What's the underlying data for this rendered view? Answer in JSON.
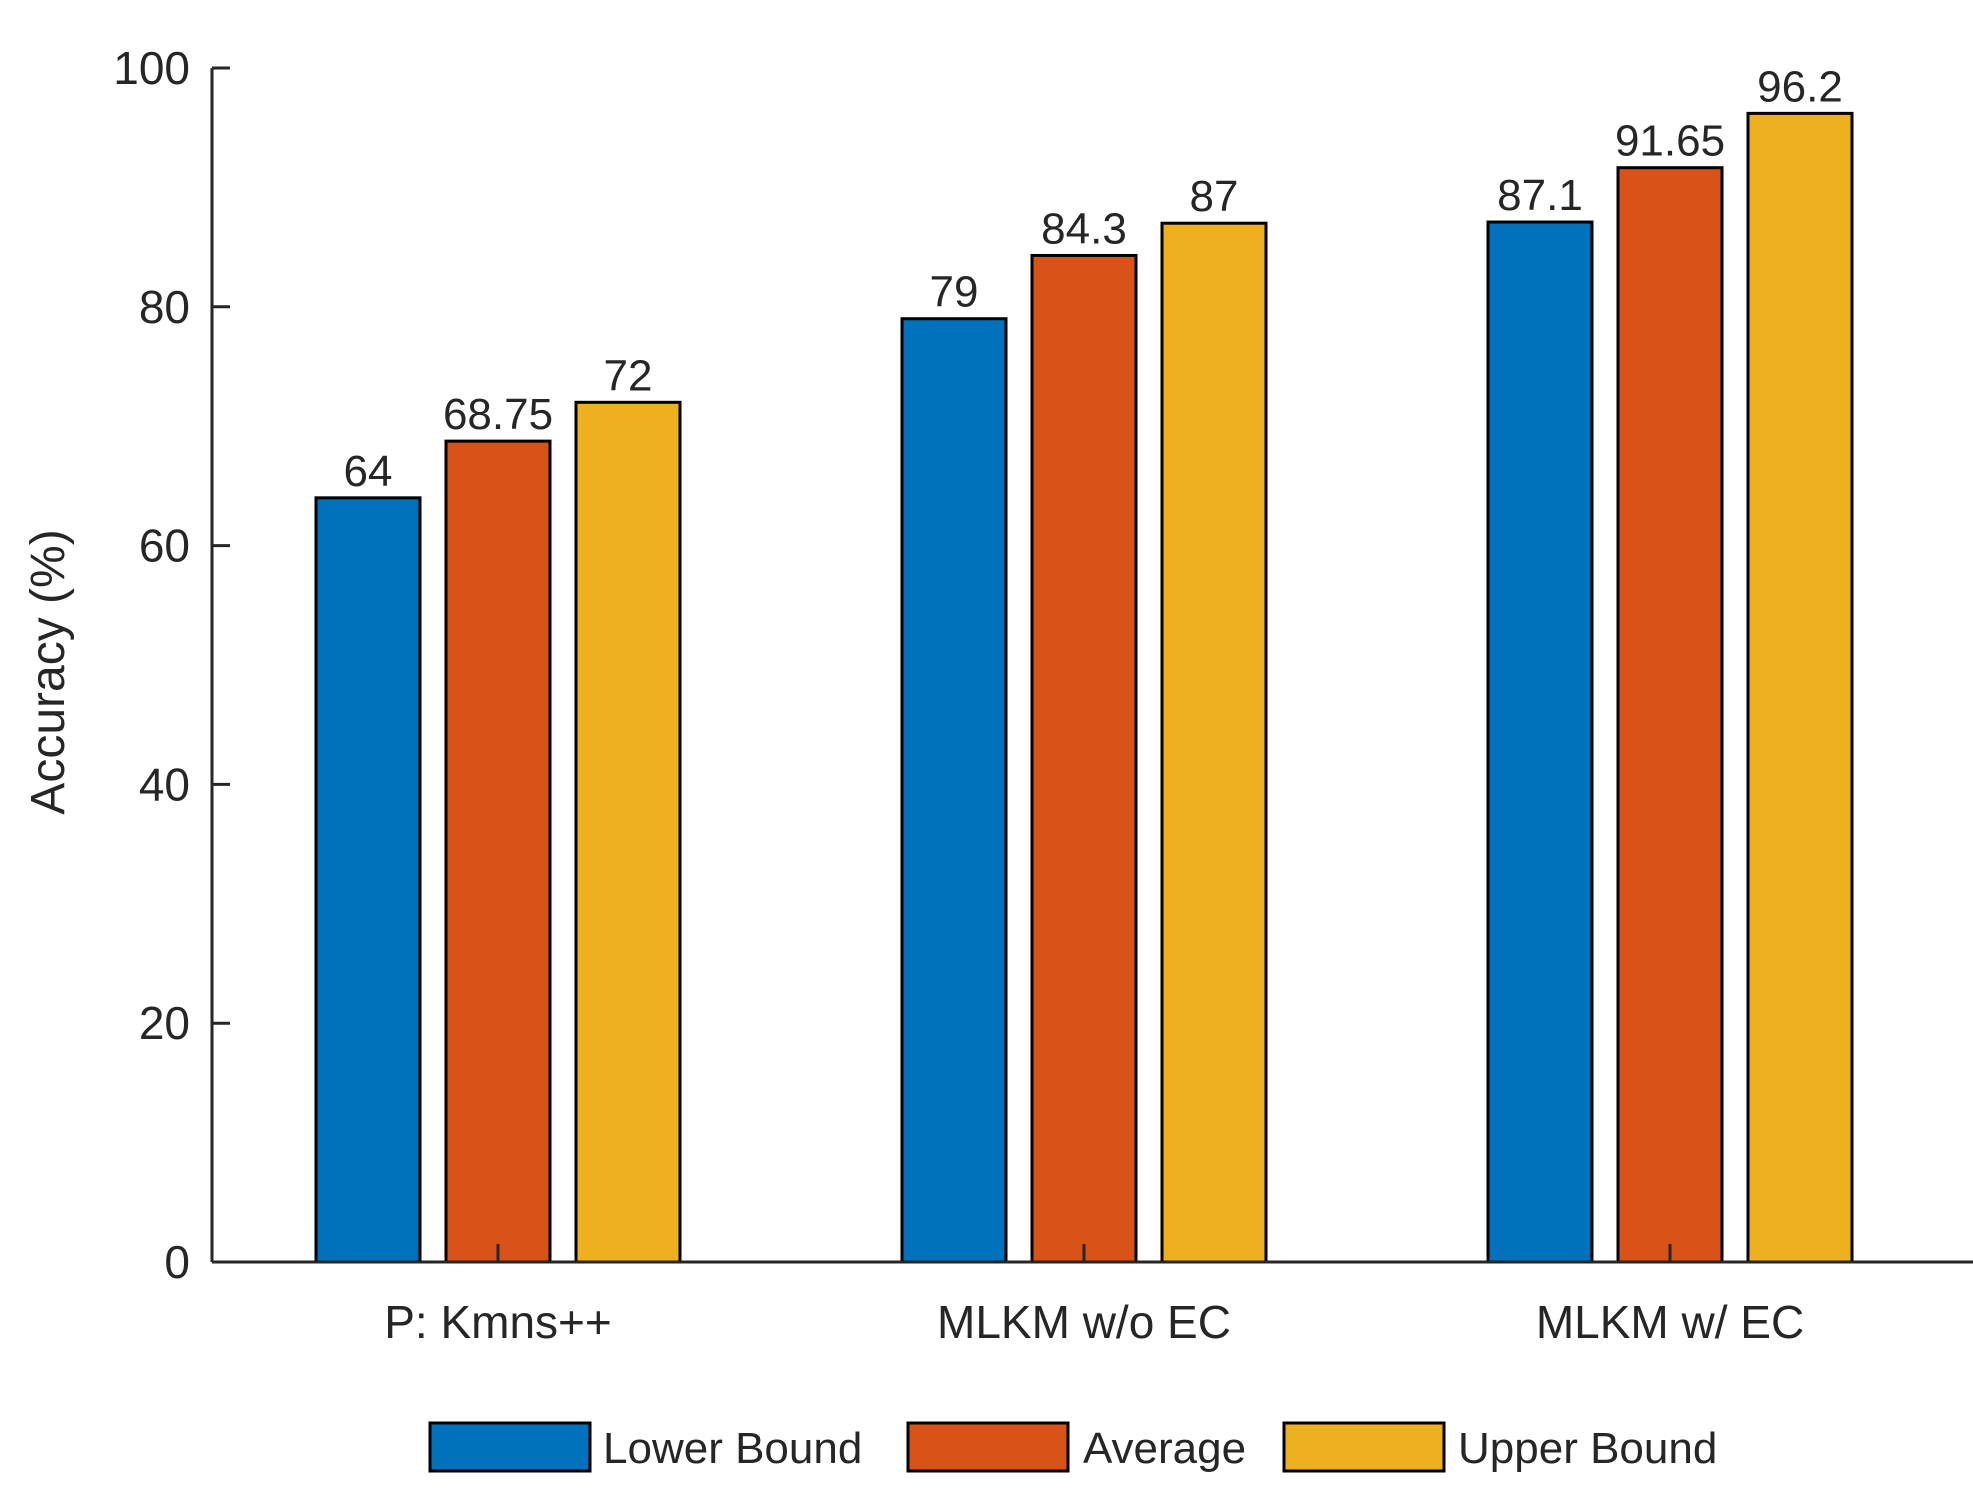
{
  "chart_data": {
    "type": "bar",
    "title": "",
    "xlabel": "",
    "ylabel": "Accuracy (%)",
    "ylim": [
      0,
      100
    ],
    "yticks": [
      0,
      20,
      40,
      60,
      80,
      100
    ],
    "grid": false,
    "legend_position": "bottom",
    "categories": [
      "P: Kmns++",
      "MLKM w/o EC",
      "MLKM w/ EC"
    ],
    "series": [
      {
        "name": "Lower Bound",
        "color": "#0072BD",
        "values": [
          64,
          79,
          87.1
        ],
        "labels": [
          "64",
          "79",
          "87.1"
        ]
      },
      {
        "name": "Average",
        "color": "#D95319",
        "values": [
          68.75,
          84.3,
          91.65
        ],
        "labels": [
          "68.75",
          "84.3",
          "91.65"
        ]
      },
      {
        "name": "Upper Bound",
        "color": "#EDB120",
        "values": [
          72,
          87,
          96.2
        ],
        "labels": [
          "72",
          "87",
          "96.2"
        ]
      }
    ]
  }
}
